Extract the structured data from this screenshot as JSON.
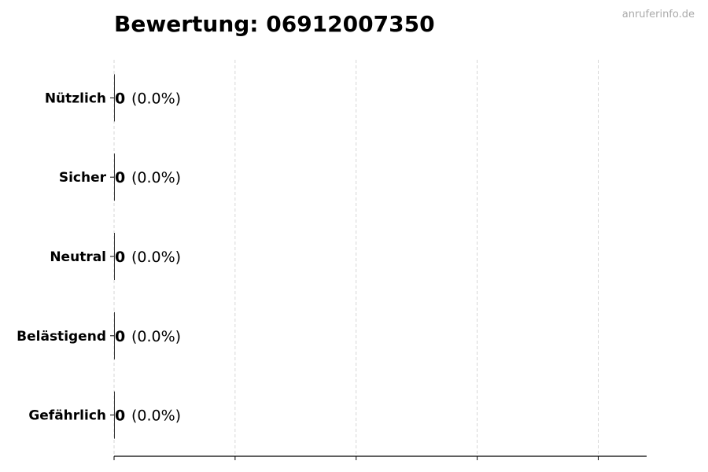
{
  "watermark": "anruferinfo.de",
  "chart_data": {
    "type": "bar",
    "orientation": "horizontal",
    "title": "Bewertung: 06912007350",
    "categories": [
      "Nützlich",
      "Sicher",
      "Neutral",
      "Belästigend",
      "Gefährlich"
    ],
    "values": [
      0,
      0,
      0,
      0,
      0
    ],
    "labels": [
      "0",
      "0",
      "0",
      "0",
      "0"
    ],
    "percent_labels": [
      "(0.0%)",
      "(0.0%)",
      "(0.0%)",
      "(0.0%)",
      "(0.0%)"
    ],
    "xlim": [
      0,
      4.4
    ],
    "xticks": [
      0,
      1,
      2,
      3,
      4
    ],
    "grid": "vertical dashed",
    "colors": {
      "bar": "#333333",
      "grid": "#cccccc",
      "axis": "#000000"
    }
  }
}
